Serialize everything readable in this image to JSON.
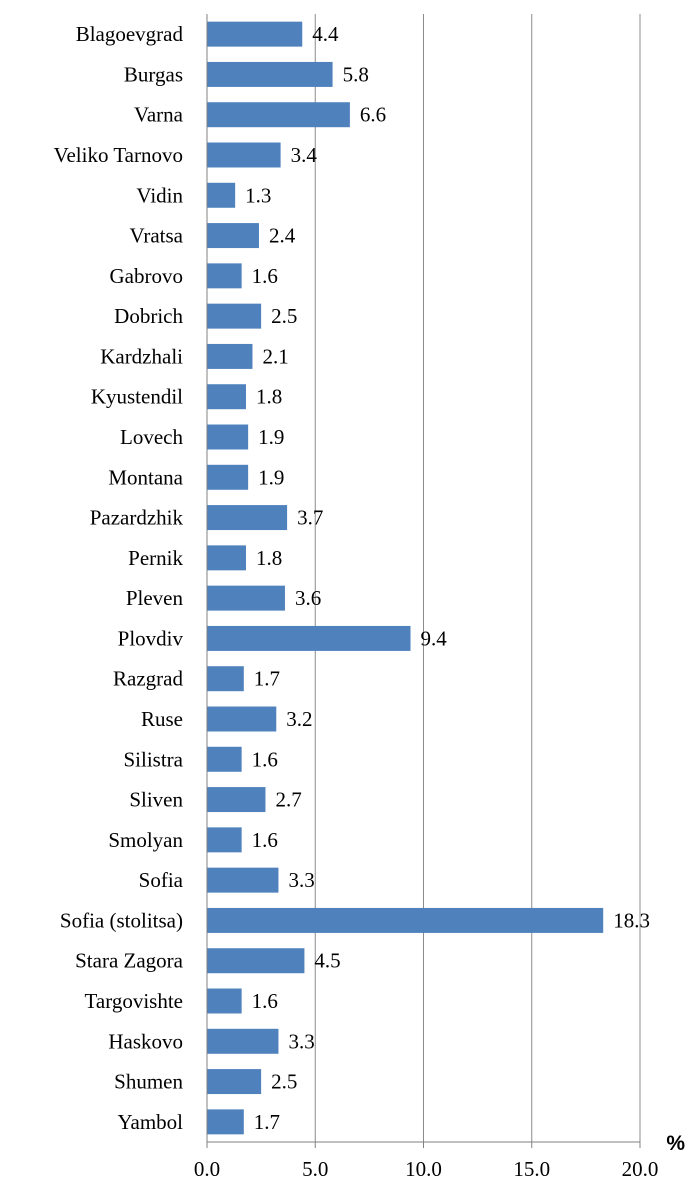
{
  "chart_data": {
    "type": "bar",
    "orientation": "horizontal",
    "categories": [
      "Blagoevgrad",
      "Burgas",
      "Varna",
      "Veliko Tarnovo",
      "Vidin",
      "Vratsa",
      "Gabrovo",
      "Dobrich",
      "Kardzhali",
      "Kyustendil",
      "Lovech",
      "Montana",
      "Pazardzhik",
      "Pernik",
      "Pleven",
      "Plovdiv",
      "Razgrad",
      "Ruse",
      "Silistra",
      "Sliven",
      "Smolyan",
      "Sofia",
      "Sofia (stolitsa)",
      "Stara Zagora",
      "Targovishte",
      "Haskovo",
      "Shumen",
      "Yambol"
    ],
    "values": [
      4.4,
      5.8,
      6.6,
      3.4,
      1.3,
      2.4,
      1.6,
      2.5,
      2.1,
      1.8,
      1.9,
      1.9,
      3.7,
      1.8,
      3.6,
      9.4,
      1.7,
      3.2,
      1.6,
      2.7,
      1.6,
      3.3,
      18.3,
      4.5,
      1.6,
      3.3,
      2.5,
      1.7
    ],
    "value_labels": [
      "4.4",
      "5.8",
      "6.6",
      "3.4",
      "1.3",
      "2.4",
      "1.6",
      "2.5",
      "2.1",
      "1.8",
      "1.9",
      "1.9",
      "3.7",
      "1.8",
      "3.6",
      "9.4",
      "1.7",
      "3.2",
      "1.6",
      "2.7",
      "1.6",
      "3.3",
      "18.3",
      "4.5",
      "1.6",
      "3.3",
      "2.5",
      "1.7"
    ],
    "xlim": [
      0,
      20
    ],
    "x_ticks": [
      0,
      5,
      10,
      15,
      20
    ],
    "x_tick_labels": [
      "0.0",
      "5.0",
      "10.0",
      "15.0",
      "20.0"
    ],
    "unit_label": "%",
    "bar_color": "#4f81bd",
    "grid": "vertical"
  }
}
